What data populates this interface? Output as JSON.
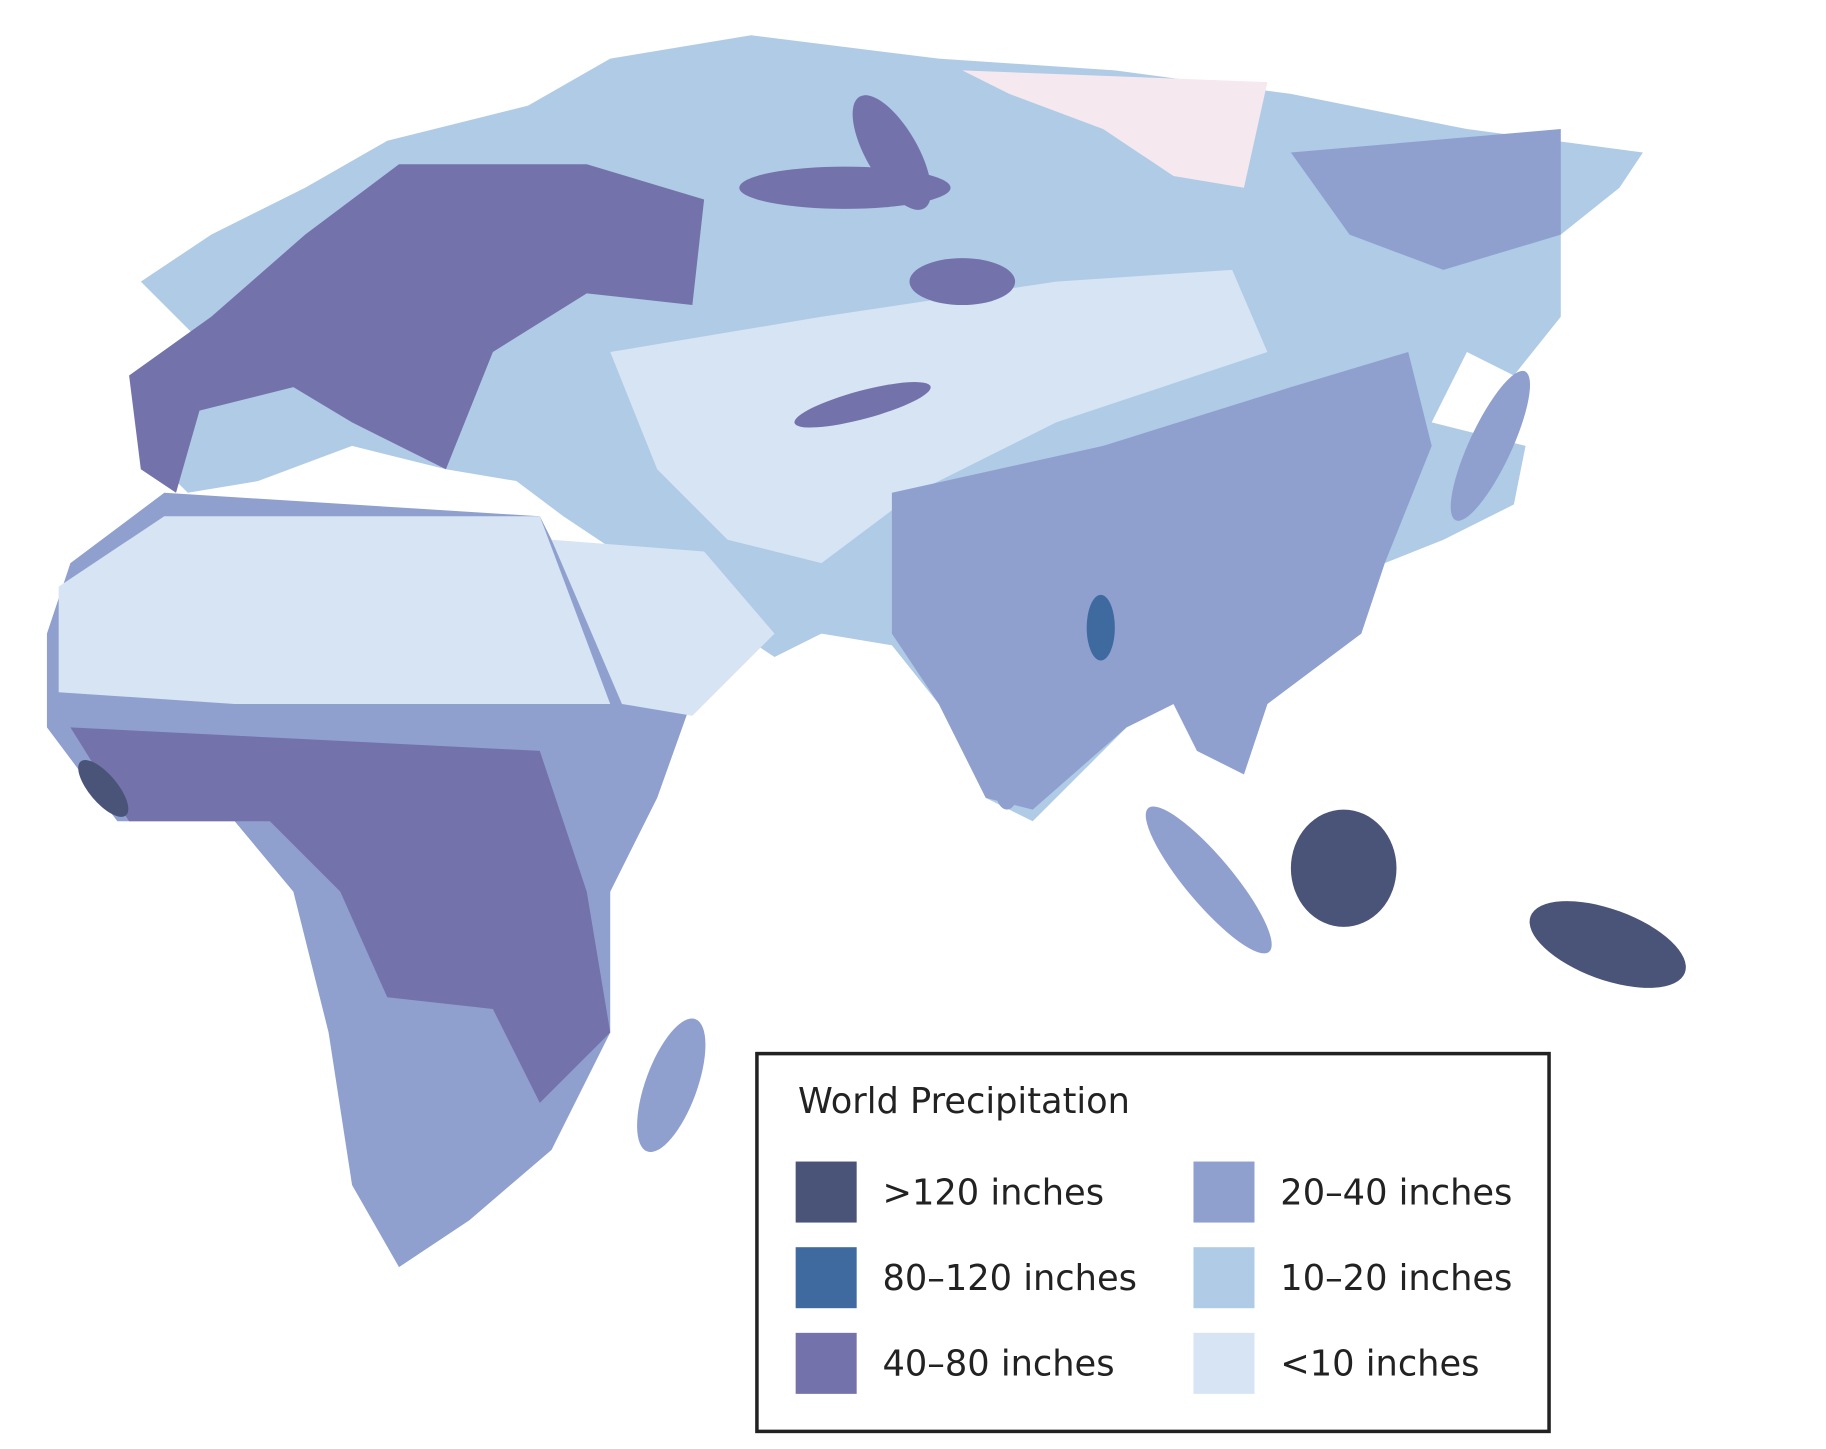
{
  "legend": {
    "title": "World Precipitation",
    "items": [
      {
        "label": ">120 inches",
        "color": "#4a5478"
      },
      {
        "label": "80–120 inches",
        "color": "#3f6aa0"
      },
      {
        "label": "40–80 inches",
        "color": "#7472ab"
      },
      {
        "label": "20–40 inches",
        "color": "#8fa0cf"
      },
      {
        "label": "10–20 inches",
        "color": "#b0cbe6"
      },
      {
        "label": "<10 inches",
        "color": "#d6e4f4"
      }
    ]
  }
}
